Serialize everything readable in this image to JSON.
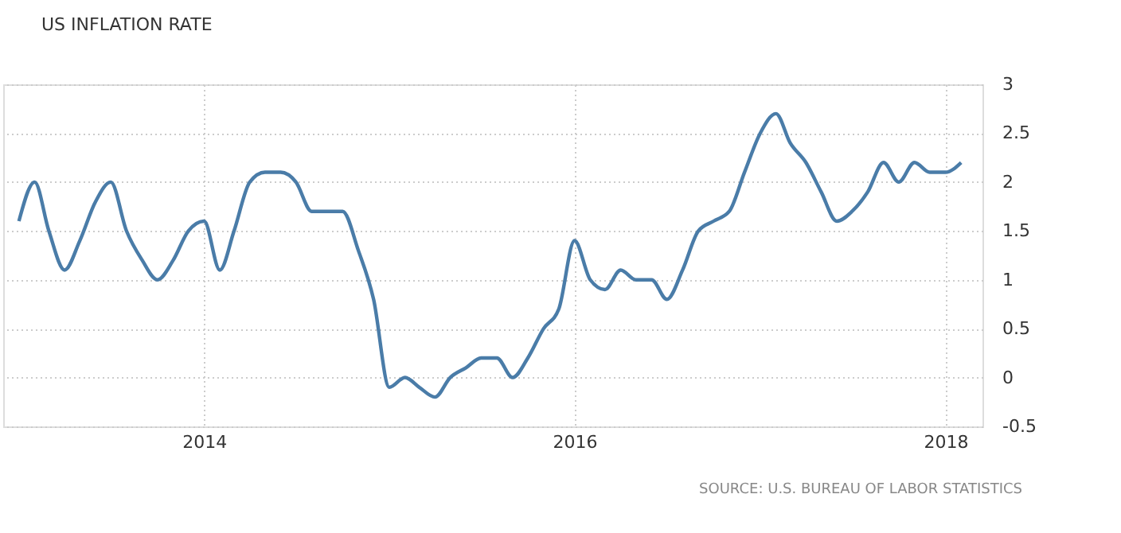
{
  "chart_data": {
    "type": "line",
    "title": "US INFLATION RATE",
    "x": [
      "2013-01",
      "2013-02",
      "2013-03",
      "2013-04",
      "2013-05",
      "2013-06",
      "2013-07",
      "2013-08",
      "2013-09",
      "2013-10",
      "2013-11",
      "2013-12",
      "2014-01",
      "2014-02",
      "2014-03",
      "2014-04",
      "2014-05",
      "2014-06",
      "2014-07",
      "2014-08",
      "2014-09",
      "2014-10",
      "2014-11",
      "2014-12",
      "2015-01",
      "2015-02",
      "2015-03",
      "2015-04",
      "2015-05",
      "2015-06",
      "2015-07",
      "2015-08",
      "2015-09",
      "2015-10",
      "2015-11",
      "2015-12",
      "2016-01",
      "2016-02",
      "2016-03",
      "2016-04",
      "2016-05",
      "2016-06",
      "2016-07",
      "2016-08",
      "2016-09",
      "2016-10",
      "2016-11",
      "2016-12",
      "2017-01",
      "2017-02",
      "2017-03",
      "2017-04",
      "2017-05",
      "2017-06",
      "2017-07",
      "2017-08",
      "2017-09",
      "2017-10",
      "2017-11",
      "2017-12",
      "2018-01",
      "2018-02"
    ],
    "series": [
      {
        "color": "#4a7ca8",
        "values": [
          1.6,
          2.0,
          1.5,
          1.1,
          1.4,
          1.8,
          2.0,
          1.5,
          1.2,
          1.0,
          1.2,
          1.5,
          1.6,
          1.1,
          1.5,
          2.0,
          2.1,
          2.1,
          2.0,
          1.7,
          1.7,
          1.7,
          1.3,
          0.8,
          -0.1,
          0.0,
          -0.1,
          -0.2,
          0.0,
          0.1,
          0.2,
          0.2,
          0.0,
          0.2,
          0.5,
          0.7,
          1.4,
          1.0,
          0.9,
          1.1,
          1.0,
          1.0,
          0.8,
          1.1,
          1.5,
          1.6,
          1.7,
          2.1,
          2.5,
          2.7,
          2.4,
          2.2,
          1.9,
          1.6,
          1.7,
          1.9,
          2.2,
          2.0,
          2.2,
          2.1,
          2.1,
          2.2
        ]
      }
    ],
    "xlim": [
      "2012-12-01",
      "2018-03-15"
    ],
    "xticks": [
      "2014",
      "2016",
      "2018"
    ],
    "ylim": [
      -0.5,
      3
    ],
    "yticks": [
      -0.5,
      0,
      0.5,
      1,
      1.5,
      2,
      2.5,
      3
    ],
    "grid": true,
    "legend": false,
    "marker": "none",
    "line_style": "solid",
    "annotations": [
      "SOURCE: U.S. BUREAU OF LABOR STATISTICS"
    ]
  }
}
